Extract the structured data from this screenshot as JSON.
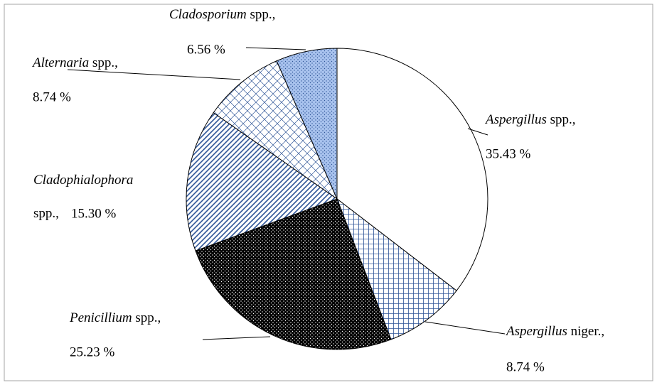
{
  "chart_data": {
    "type": "pie",
    "categories": [
      "Aspergillus spp.,",
      "Aspergillus niger.,",
      "Penicillium spp.,",
      "Cladophialophora spp.,",
      "Alternaria spp.,",
      "Cladosporium spp.,"
    ],
    "values": [
      35.43,
      8.74,
      25.23,
      15.3,
      8.74,
      6.56
    ],
    "value_labels": [
      "35.43 %",
      "8.74 %",
      "25.23 %",
      "15.30 %",
      "8.74 %",
      "6.56 %"
    ],
    "colors": [
      "#ffffff",
      "#ffffff",
      "#000000",
      "#ffffff",
      "#ffffff",
      "#a9c3ee"
    ],
    "pattern_color": "#2f5597",
    "fill_patterns": [
      "none",
      "grid",
      "dots",
      "diagonal",
      "diamond",
      "dots"
    ]
  }
}
